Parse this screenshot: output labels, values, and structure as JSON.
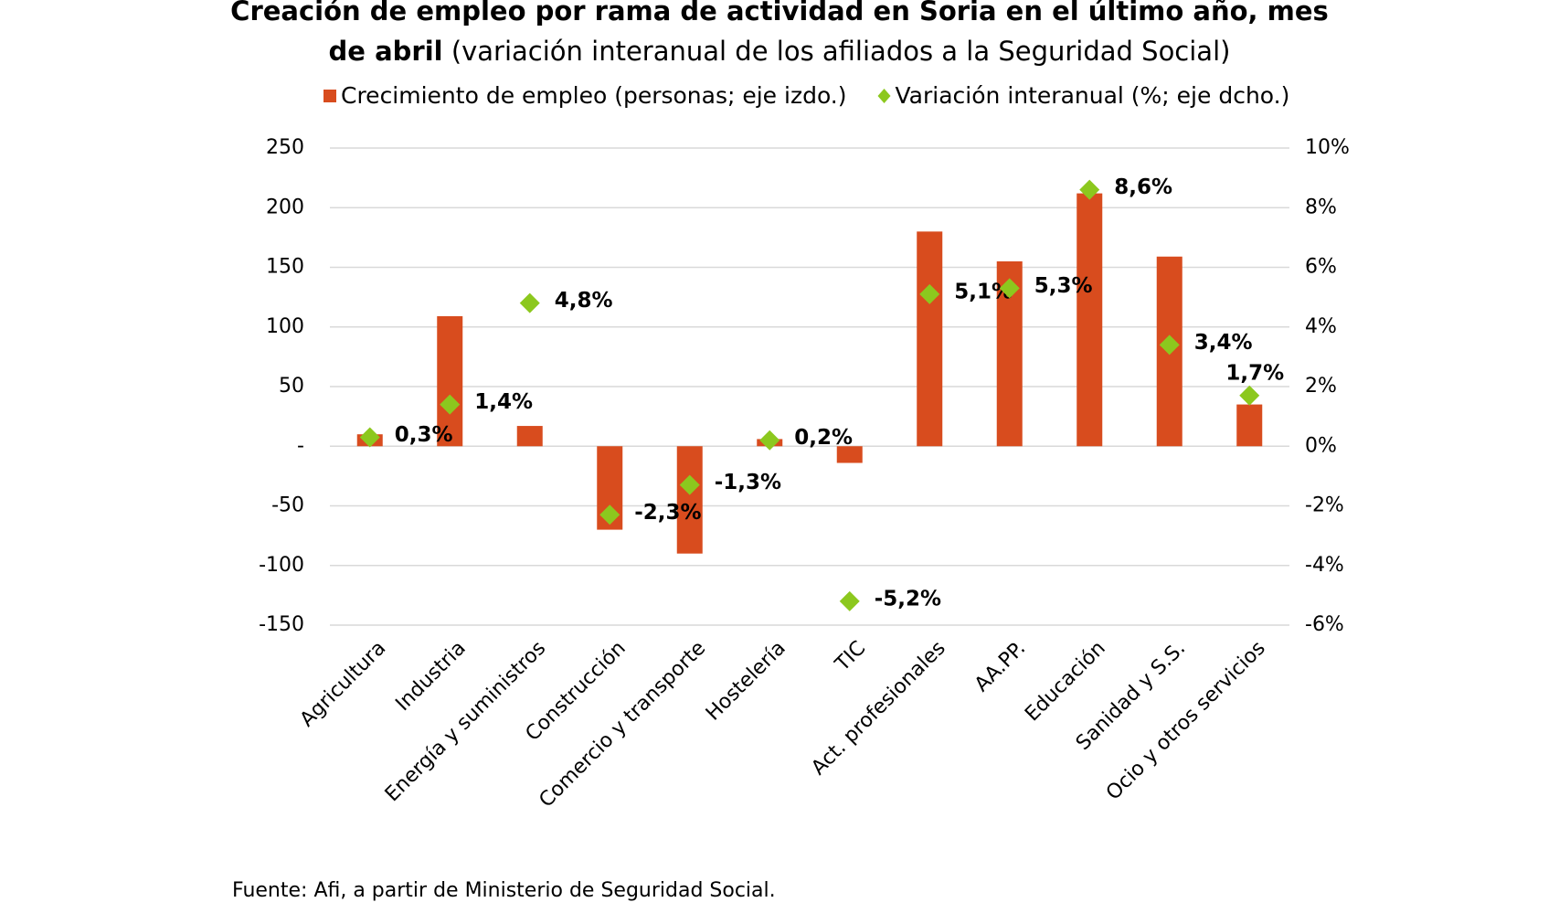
{
  "chart_data": {
    "type": "bar-line",
    "title": "Creación de empleo por rama de actividad en Soria en el último año, mes de abril",
    "subtitle": "(variación interanual de los afiliados a la Seguridad Social)",
    "categories": [
      "Agricultura",
      "Industria",
      "Energía y suministros",
      "Construcción",
      "Comercio y transporte",
      "Hostelería",
      "TIC",
      "Act. profesionales",
      "AA.PP.",
      "Educación",
      "Sanidad y S.S.",
      "Ocio y otros servicios"
    ],
    "series": [
      {
        "name": "Crecimiento de empleo (personas; eje izdo.)",
        "color": "#d84c1e",
        "type": "bar",
        "values": [
          10,
          109,
          17,
          -70,
          -90,
          6,
          -14,
          180,
          155,
          212,
          159,
          35
        ]
      },
      {
        "name": "Variación interanual (%; eje dcho.)",
        "color": "#8cc81e",
        "type": "scatter",
        "axis": "y2",
        "values": [
          0.3,
          1.4,
          4.8,
          -2.3,
          -1.3,
          0.2,
          -5.2,
          5.1,
          5.3,
          8.6,
          3.4,
          1.7
        ],
        "value_labels": [
          "0,3%",
          "1,4%",
          "4,8%",
          "-2,3%",
          "-1,3%",
          "0,2%",
          "-5,2%",
          "5,1%",
          "5,3%",
          "8,6%",
          "3,4%",
          "1,7%"
        ]
      }
    ],
    "ylim": [
      -150,
      250
    ],
    "yticks": [
      250,
      200,
      150,
      100,
      50,
      {
        "value": 0,
        "label": "-"
      },
      -50,
      -100,
      -150
    ],
    "y2lim": [
      -6,
      10
    ],
    "y2ticks": [
      {
        "value": 10,
        "label": "10%"
      },
      {
        "value": 8,
        "label": "8%"
      },
      {
        "value": 6,
        "label": "6%"
      },
      {
        "value": 4,
        "label": "4%"
      },
      {
        "value": 2,
        "label": "2%"
      },
      {
        "value": 0,
        "label": "0%"
      },
      {
        "value": -2,
        "label": "-2%"
      },
      {
        "value": -4,
        "label": "-4%"
      },
      {
        "value": -6,
        "label": "-6%"
      }
    ],
    "grid": true,
    "source": "Fuente: Afi, a partir de Ministerio de Seguridad Social."
  }
}
